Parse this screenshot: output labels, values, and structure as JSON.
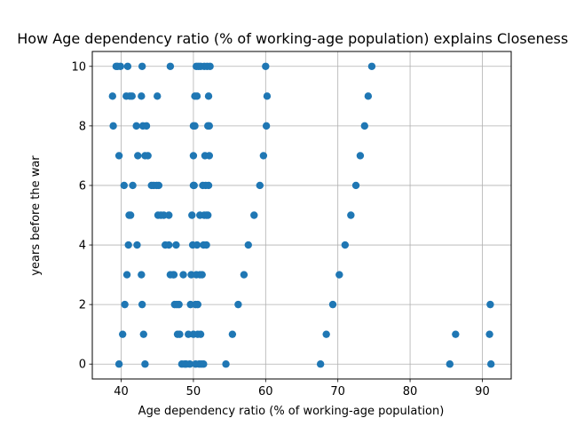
{
  "chart_data": {
    "type": "scatter",
    "title": "How Age dependency ratio (% of working-age population) explains Closeness of",
    "xlabel": "Age dependency ratio (% of working-age population)",
    "ylabel": "years before the war",
    "xlim": [
      36,
      94
    ],
    "ylim": [
      -0.5,
      10.5
    ],
    "xticks": [
      40,
      50,
      60,
      70,
      80,
      90
    ],
    "yticks": [
      0,
      2,
      4,
      6,
      8,
      10
    ],
    "grid": true,
    "marker_color": "#1f77b4",
    "points": [
      [
        38.8,
        9
      ],
      [
        38.9,
        8
      ],
      [
        39.3,
        10
      ],
      [
        39.5,
        10
      ],
      [
        39.7,
        0
      ],
      [
        39.7,
        7
      ],
      [
        39.9,
        10
      ],
      [
        40.2,
        1
      ],
      [
        40.4,
        6
      ],
      [
        40.5,
        2
      ],
      [
        40.7,
        9
      ],
      [
        40.8,
        3
      ],
      [
        40.9,
        10
      ],
      [
        41.0,
        4
      ],
      [
        41.1,
        5
      ],
      [
        41.2,
        9
      ],
      [
        41.3,
        5
      ],
      [
        41.5,
        9
      ],
      [
        41.6,
        6
      ],
      [
        42.1,
        8
      ],
      [
        42.2,
        4
      ],
      [
        42.3,
        7
      ],
      [
        42.8,
        3
      ],
      [
        42.8,
        9
      ],
      [
        42.9,
        10
      ],
      [
        42.9,
        2
      ],
      [
        43.0,
        8
      ],
      [
        43.1,
        1
      ],
      [
        43.3,
        7
      ],
      [
        43.3,
        0
      ],
      [
        43.5,
        8
      ],
      [
        43.7,
        7
      ],
      [
        44.2,
        6
      ],
      [
        44.5,
        6
      ],
      [
        44.9,
        6
      ],
      [
        45.0,
        9
      ],
      [
        45.1,
        5
      ],
      [
        45.2,
        6
      ],
      [
        45.5,
        5
      ],
      [
        45.9,
        5
      ],
      [
        46.1,
        4
      ],
      [
        46.6,
        4
      ],
      [
        46.6,
        5
      ],
      [
        46.8,
        3
      ],
      [
        46.8,
        10
      ],
      [
        47.2,
        3
      ],
      [
        47.3,
        3
      ],
      [
        47.4,
        2
      ],
      [
        47.6,
        4
      ],
      [
        47.7,
        2
      ],
      [
        47.8,
        1
      ],
      [
        48.0,
        2
      ],
      [
        48.1,
        1
      ],
      [
        48.4,
        0
      ],
      [
        48.6,
        3
      ],
      [
        48.8,
        0
      ],
      [
        49.0,
        0
      ],
      [
        49.3,
        1
      ],
      [
        49.5,
        0
      ],
      [
        49.6,
        2
      ],
      [
        49.7,
        3
      ],
      [
        49.8,
        5
      ],
      [
        49.9,
        4
      ],
      [
        50.0,
        7
      ],
      [
        50.0,
        6
      ],
      [
        50.0,
        1
      ],
      [
        50.0,
        8
      ],
      [
        50.1,
        6
      ],
      [
        50.2,
        8
      ],
      [
        50.2,
        9
      ],
      [
        50.3,
        2
      ],
      [
        50.3,
        0
      ],
      [
        50.4,
        3
      ],
      [
        50.4,
        10
      ],
      [
        50.5,
        9
      ],
      [
        50.5,
        4
      ],
      [
        50.6,
        1
      ],
      [
        50.6,
        2
      ],
      [
        50.7,
        10
      ],
      [
        50.8,
        0
      ],
      [
        50.9,
        5
      ],
      [
        50.9,
        3
      ],
      [
        51.0,
        1
      ],
      [
        51.0,
        10
      ],
      [
        51.1,
        0
      ],
      [
        51.2,
        3
      ],
      [
        51.3,
        6
      ],
      [
        51.4,
        4
      ],
      [
        51.4,
        0
      ],
      [
        51.5,
        5
      ],
      [
        51.5,
        10
      ],
      [
        51.6,
        7
      ],
      [
        51.7,
        6
      ],
      [
        51.8,
        4
      ],
      [
        51.8,
        5
      ],
      [
        51.9,
        10
      ],
      [
        52.0,
        8
      ],
      [
        52.0,
        5
      ],
      [
        52.1,
        6
      ],
      [
        52.1,
        9
      ],
      [
        52.2,
        8
      ],
      [
        52.2,
        7
      ],
      [
        52.3,
        10
      ],
      [
        54.5,
        0
      ],
      [
        55.4,
        1
      ],
      [
        56.2,
        2
      ],
      [
        57.0,
        3
      ],
      [
        57.6,
        4
      ],
      [
        58.4,
        5
      ],
      [
        59.2,
        6
      ],
      [
        59.7,
        7
      ],
      [
        60.0,
        10
      ],
      [
        60.1,
        8
      ],
      [
        60.2,
        9
      ],
      [
        67.6,
        0
      ],
      [
        68.4,
        1
      ],
      [
        69.3,
        2
      ],
      [
        70.2,
        3
      ],
      [
        71.0,
        4
      ],
      [
        71.8,
        5
      ],
      [
        72.5,
        6
      ],
      [
        73.1,
        7
      ],
      [
        73.7,
        8
      ],
      [
        74.2,
        9
      ],
      [
        74.7,
        10
      ],
      [
        85.5,
        0
      ],
      [
        86.3,
        1
      ],
      [
        91.0,
        1
      ],
      [
        91.1,
        2
      ],
      [
        91.2,
        0
      ]
    ]
  }
}
